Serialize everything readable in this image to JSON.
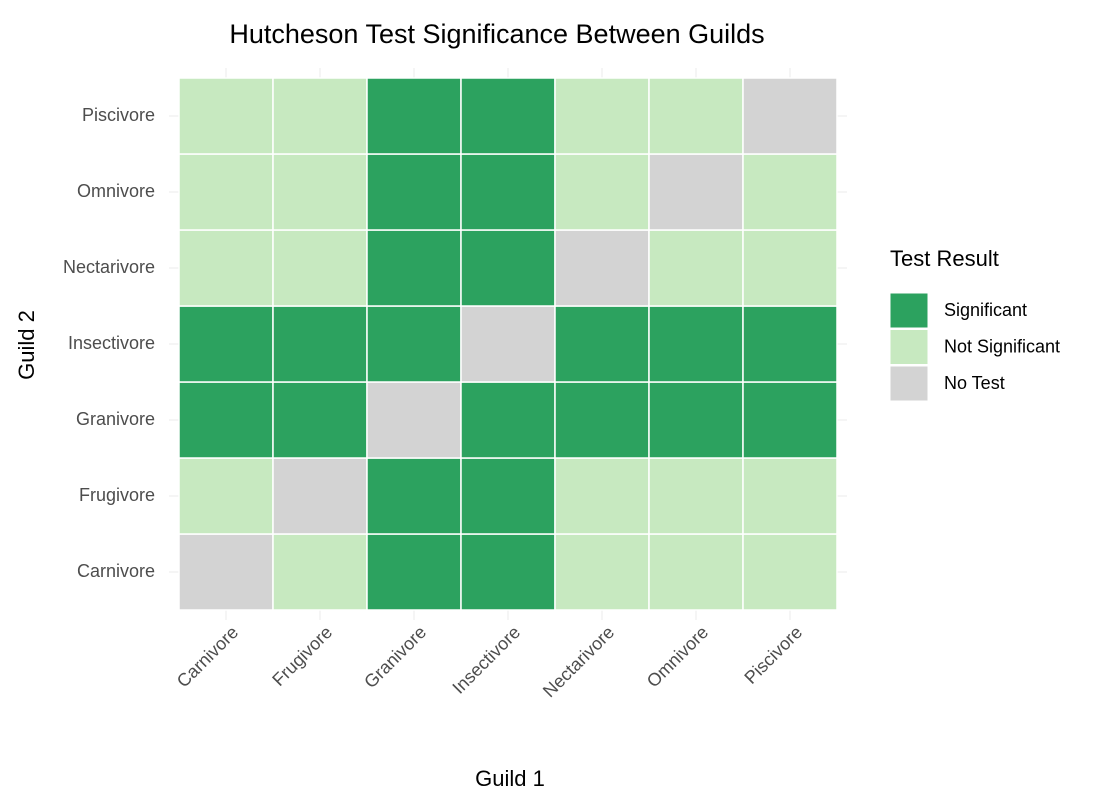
{
  "chart_data": {
    "type": "heatmap",
    "title": "Hutcheson Test Significance Between Guilds",
    "x_label": "Guild 1",
    "y_label": "Guild 2",
    "x_categories": [
      "Carnivore",
      "Frugivore",
      "Granivore",
      "Insectivore",
      "Nectarivore",
      "Omnivore",
      "Piscivore"
    ],
    "y_categories": [
      "Carnivore",
      "Frugivore",
      "Granivore",
      "Insectivore",
      "Nectarivore",
      "Omnivore",
      "Piscivore"
    ],
    "legend_title": "Test Result",
    "series": [
      {
        "name": "Significant",
        "color": "#2ca25f"
      },
      {
        "name": "Not Significant",
        "color": "#c7e9c0"
      },
      {
        "name": "No Test",
        "color": "#d3d3d3"
      }
    ],
    "values": [
      [
        "No Test",
        "Not Significant",
        "Significant",
        "Significant",
        "Not Significant",
        "Not Significant",
        "Not Significant"
      ],
      [
        "Not Significant",
        "No Test",
        "Significant",
        "Significant",
        "Not Significant",
        "Not Significant",
        "Not Significant"
      ],
      [
        "Significant",
        "Significant",
        "No Test",
        "Significant",
        "Significant",
        "Significant",
        "Significant"
      ],
      [
        "Significant",
        "Significant",
        "Significant",
        "No Test",
        "Significant",
        "Significant",
        "Significant"
      ],
      [
        "Not Significant",
        "Not Significant",
        "Significant",
        "Significant",
        "No Test",
        "Not Significant",
        "Not Significant"
      ],
      [
        "Not Significant",
        "Not Significant",
        "Significant",
        "Significant",
        "Not Significant",
        "No Test",
        "Not Significant"
      ],
      [
        "Not Significant",
        "Not Significant",
        "Significant",
        "Significant",
        "Not Significant",
        "Not Significant",
        "No Test"
      ]
    ],
    "grid": true,
    "legend": "right"
  }
}
